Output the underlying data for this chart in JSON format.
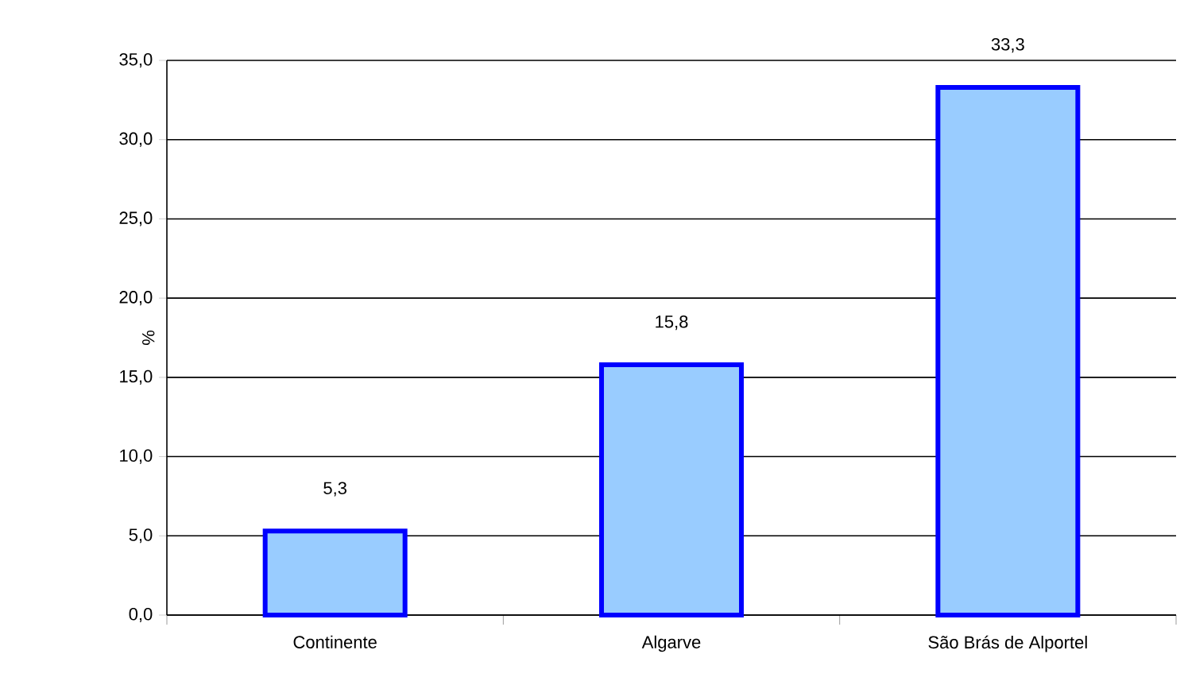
{
  "chart_data": {
    "type": "bar",
    "ylabel": "%",
    "categories": [
      "Continente",
      "Algarve",
      "São Brás de Alportel"
    ],
    "values": [
      5.3,
      15.8,
      33.3
    ],
    "value_labels": [
      "5,3",
      "15,8",
      "33,3"
    ],
    "color": "#99ccff",
    "ylim": [
      0,
      35
    ],
    "yticks": [
      {
        "value": 0,
        "label": "0,0"
      },
      {
        "value": 5,
        "label": "5,0"
      },
      {
        "value": 10,
        "label": "10,0"
      },
      {
        "value": 15,
        "label": "15,0"
      },
      {
        "value": 20,
        "label": "20,0"
      },
      {
        "value": 25,
        "label": "25,0"
      },
      {
        "value": 30,
        "label": "30,0"
      },
      {
        "value": 35,
        "label": "35,0"
      }
    ],
    "grid": "y"
  }
}
